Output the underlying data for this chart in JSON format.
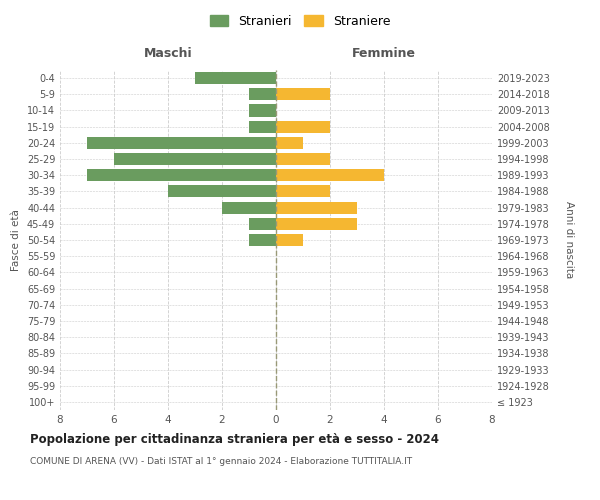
{
  "age_groups": [
    "100+",
    "95-99",
    "90-94",
    "85-89",
    "80-84",
    "75-79",
    "70-74",
    "65-69",
    "60-64",
    "55-59",
    "50-54",
    "45-49",
    "40-44",
    "35-39",
    "30-34",
    "25-29",
    "20-24",
    "15-19",
    "10-14",
    "5-9",
    "0-4"
  ],
  "birth_years": [
    "≤ 1923",
    "1924-1928",
    "1929-1933",
    "1934-1938",
    "1939-1943",
    "1944-1948",
    "1949-1953",
    "1954-1958",
    "1959-1963",
    "1964-1968",
    "1969-1973",
    "1974-1978",
    "1979-1983",
    "1984-1988",
    "1989-1993",
    "1994-1998",
    "1999-2003",
    "2004-2008",
    "2009-2013",
    "2014-2018",
    "2019-2023"
  ],
  "males": [
    0,
    0,
    0,
    0,
    0,
    0,
    0,
    0,
    0,
    0,
    1,
    1,
    2,
    4,
    7,
    6,
    7,
    1,
    1,
    1,
    3
  ],
  "females": [
    0,
    0,
    0,
    0,
    0,
    0,
    0,
    0,
    0,
    0,
    1,
    3,
    3,
    2,
    4,
    2,
    1,
    2,
    0,
    2,
    0
  ],
  "male_color": "#6a9c5f",
  "female_color": "#f5b731",
  "title": "Popolazione per cittadinanza straniera per età e sesso - 2024",
  "subtitle": "COMUNE DI ARENA (VV) - Dati ISTAT al 1° gennaio 2024 - Elaborazione TUTTITALIA.IT",
  "xlabel_left": "Maschi",
  "xlabel_right": "Femmine",
  "ylabel_left": "Fasce di età",
  "ylabel_right": "Anni di nascita",
  "legend_male": "Stranieri",
  "legend_female": "Straniere",
  "xlim": 8,
  "bg_color": "#ffffff",
  "grid_color": "#cccccc"
}
